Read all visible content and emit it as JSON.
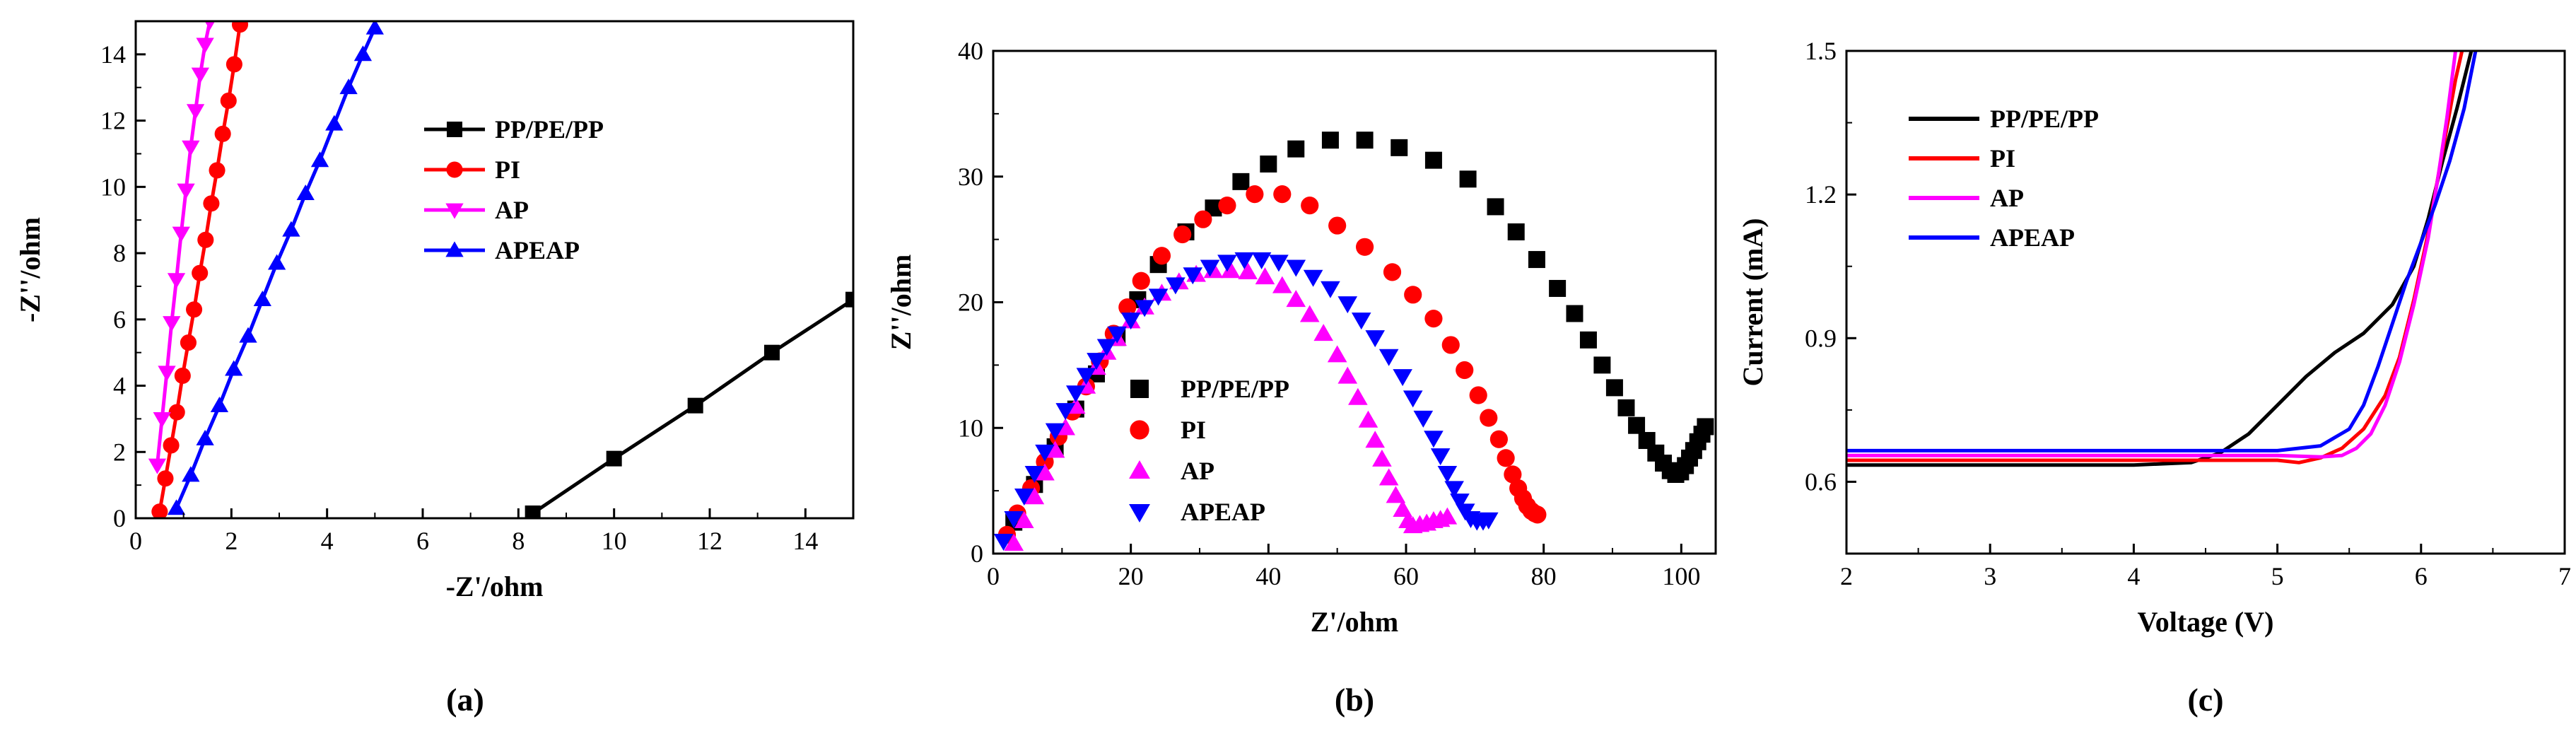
{
  "colors": {
    "PP/PE/PP": "#000000",
    "PI": "#ff0000",
    "AP": "#ff00ff",
    "APEAP": "#0000ff"
  },
  "chart_data": [
    {
      "panel": "(a)",
      "type": "scatter",
      "title": "",
      "xlabel": "-Z'/ohm",
      "ylabel": "-Z''/ohm",
      "xlim": [
        0,
        15
      ],
      "ylim": [
        0,
        15
      ],
      "xticks": [
        "0",
        "2",
        "4",
        "6",
        "8",
        "10",
        "12",
        "14"
      ],
      "yticks": [
        "0",
        "2",
        "4",
        "6",
        "8",
        "10",
        "12",
        "14"
      ],
      "legend": [
        "PP/PE/PP",
        "PI",
        "AP",
        "APEAP"
      ],
      "legend_position": "center-right",
      "series": [
        {
          "name": "PP/PE/PP",
          "marker": "square",
          "line": true,
          "x": [
            8.3,
            10.0,
            11.7,
            13.3,
            15.0
          ],
          "y": [
            0.15,
            1.8,
            3.4,
            5.0,
            6.6
          ]
        },
        {
          "name": "PI",
          "marker": "circle",
          "line": true,
          "x": [
            0.5,
            0.62,
            0.74,
            0.86,
            0.98,
            1.1,
            1.22,
            1.34,
            1.46,
            1.58,
            1.7,
            1.82,
            1.94,
            2.06,
            2.18
          ],
          "y": [
            0.2,
            1.2,
            2.2,
            3.2,
            4.3,
            5.3,
            6.3,
            7.4,
            8.4,
            9.5,
            10.5,
            11.6,
            12.6,
            13.7,
            14.9
          ]
        },
        {
          "name": "AP",
          "marker": "triangle-down",
          "line": true,
          "x": [
            0.45,
            0.55,
            0.65,
            0.75,
            0.85,
            0.95,
            1.05,
            1.15,
            1.25,
            1.35,
            1.45,
            1.55
          ],
          "y": [
            1.6,
            3.0,
            4.4,
            5.9,
            7.2,
            8.6,
            9.9,
            11.2,
            12.3,
            13.4,
            14.3,
            15.0
          ]
        },
        {
          "name": "APEAP",
          "marker": "triangle-up",
          "line": true,
          "x": [
            0.85,
            1.15,
            1.45,
            1.75,
            2.05,
            2.35,
            2.65,
            2.95,
            3.25,
            3.55,
            3.85,
            4.15,
            4.45,
            4.75,
            5.0
          ],
          "y": [
            0.3,
            1.3,
            2.4,
            3.4,
            4.5,
            5.5,
            6.6,
            7.7,
            8.7,
            9.8,
            10.8,
            11.9,
            13.0,
            14.0,
            14.8
          ]
        }
      ]
    },
    {
      "panel": "(b)",
      "type": "scatter",
      "title": "",
      "xlabel": "Z'/ohm",
      "ylabel": "Z''/ohm",
      "xlim": [
        0,
        105
      ],
      "ylim": [
        0,
        40
      ],
      "xticks": [
        "0",
        "20",
        "40",
        "60",
        "80",
        "100"
      ],
      "yticks": [
        "0",
        "10",
        "20",
        "30",
        "40"
      ],
      "legend": [
        "PP/PE/PP",
        "PI",
        "AP",
        "APEAP"
      ],
      "legend_position": "lower-left",
      "series": [
        {
          "name": "PP/PE/PP",
          "marker": "square",
          "line": false,
          "x": [
            3,
            6,
            9,
            12,
            15,
            18,
            21,
            24,
            28,
            32,
            36,
            40,
            44,
            49,
            54,
            59,
            64,
            69,
            73,
            76,
            79,
            82,
            84.5,
            86.5,
            88.5,
            90.3,
            92,
            93.5,
            95,
            96.3,
            97.4,
            98.4,
            99.2,
            99.9,
            100.6,
            101.2,
            101.8,
            102.4,
            103.0,
            103.5
          ],
          "y": [
            2.5,
            5.5,
            8.5,
            11.5,
            14.3,
            17.2,
            20.2,
            23.0,
            25.6,
            27.5,
            29.6,
            31.0,
            32.2,
            32.9,
            32.9,
            32.3,
            31.3,
            29.8,
            27.6,
            25.6,
            23.4,
            21.1,
            19.1,
            17.0,
            15.0,
            13.2,
            11.6,
            10.2,
            9.0,
            8.0,
            7.2,
            6.6,
            6.3,
            6.5,
            7.0,
            7.6,
            8.2,
            8.9,
            9.5,
            10.1
          ]
        },
        {
          "name": "PI",
          "marker": "circle",
          "line": false,
          "x": [
            2,
            3.5,
            5.5,
            7.5,
            9.5,
            11.5,
            13.5,
            15.5,
            17.5,
            19.5,
            21.5,
            24.5,
            27.5,
            30.5,
            34,
            38,
            42,
            46,
            50,
            54,
            58,
            61,
            64,
            66.5,
            68.5,
            70.5,
            72,
            73.5,
            74.5,
            75.5,
            76.3,
            77,
            77.6,
            78.2,
            78.7,
            79.1
          ],
          "y": [
            1.5,
            3.2,
            5.2,
            7.3,
            9.3,
            11.3,
            13.3,
            15.3,
            17.5,
            19.6,
            21.7,
            23.7,
            25.4,
            26.6,
            27.7,
            28.6,
            28.6,
            27.7,
            26.1,
            24.4,
            22.4,
            20.6,
            18.7,
            16.6,
            14.6,
            12.6,
            10.8,
            9.1,
            7.6,
            6.3,
            5.2,
            4.4,
            3.8,
            3.4,
            3.2,
            3.1
          ]
        },
        {
          "name": "AP",
          "marker": "triangle-up",
          "line": false,
          "x": [
            3,
            4.5,
            6,
            7.5,
            9,
            10.5,
            12,
            13.5,
            15,
            16.5,
            18,
            20,
            22,
            24.5,
            27,
            29.5,
            32,
            34.5,
            37,
            39.5,
            42,
            44,
            46,
            48,
            50,
            51.5,
            53,
            54.5,
            55.5,
            56.5,
            57.5,
            58.5,
            59.5,
            60.3,
            61,
            62,
            63,
            64,
            65,
            66
          ],
          "y": [
            0.8,
            2.6,
            4.5,
            6.4,
            8.2,
            10.0,
            11.7,
            13.3,
            14.8,
            16.0,
            17.1,
            18.5,
            19.6,
            20.7,
            21.6,
            22.2,
            22.5,
            22.5,
            22.4,
            22.0,
            21.3,
            20.2,
            19.0,
            17.5,
            15.8,
            14.1,
            12.4,
            10.6,
            9.0,
            7.5,
            6.0,
            4.6,
            3.5,
            2.6,
            2.2,
            2.3,
            2.4,
            2.6,
            2.7,
            2.9
          ]
        },
        {
          "name": "APEAP",
          "marker": "triangle-down",
          "line": false,
          "x": [
            1.5,
            3,
            4.5,
            6,
            7.5,
            9,
            10.5,
            12,
            13.5,
            15,
            16.5,
            18,
            20,
            22,
            24,
            26.5,
            29,
            31.5,
            34,
            36.5,
            39,
            41.5,
            44,
            46.5,
            49,
            51.5,
            53.5,
            55.5,
            57.5,
            59.5,
            61,
            62.5,
            64,
            65,
            66,
            67,
            67.8,
            68.6,
            69.4,
            70.3,
            71.2,
            72
          ],
          "y": [
            1.0,
            2.8,
            4.6,
            6.4,
            8.1,
            9.8,
            11.4,
            12.8,
            14.2,
            15.4,
            16.5,
            17.5,
            18.6,
            19.6,
            20.5,
            21.4,
            22.2,
            22.8,
            23.2,
            23.4,
            23.4,
            23.2,
            22.8,
            22.0,
            21.1,
            19.9,
            18.6,
            17.2,
            15.7,
            14.1,
            12.4,
            10.8,
            9.2,
            7.8,
            6.4,
            5.2,
            4.2,
            3.4,
            2.8,
            2.6,
            2.6,
            2.7
          ]
        }
      ]
    },
    {
      "panel": "(c)",
      "type": "line",
      "title": "",
      "xlabel": "Voltage (V)",
      "ylabel": "Current (mA)",
      "xlim": [
        2,
        7
      ],
      "ylim": [
        0.45,
        1.5
      ],
      "xticks": [
        "2",
        "3",
        "4",
        "5",
        "6",
        "7"
      ],
      "yticks": [
        "0.6",
        "0.9",
        "1.2",
        "1.5"
      ],
      "ytick_values": [
        0.6,
        0.9,
        1.2,
        1.5
      ],
      "legend": [
        "PP/PE/PP",
        "PI",
        "AP",
        "APEAP"
      ],
      "legend_position": "top-left",
      "series": [
        {
          "name": "PP/PE/PP",
          "x": [
            2,
            3,
            4,
            4.4,
            4.6,
            4.8,
            5.0,
            5.2,
            5.4,
            5.6,
            5.8,
            5.95,
            6.05,
            6.15,
            6.25,
            6.35
          ],
          "y": [
            0.635,
            0.635,
            0.635,
            0.64,
            0.66,
            0.7,
            0.76,
            0.82,
            0.87,
            0.91,
            0.97,
            1.05,
            1.15,
            1.27,
            1.38,
            1.5
          ]
        },
        {
          "name": "PI",
          "x": [
            2,
            3,
            4,
            5,
            5.15,
            5.3,
            5.45,
            5.6,
            5.75,
            5.85,
            5.95,
            6.05,
            6.12,
            6.18,
            6.24,
            6.3
          ],
          "y": [
            0.645,
            0.645,
            0.645,
            0.645,
            0.64,
            0.65,
            0.67,
            0.71,
            0.78,
            0.86,
            0.98,
            1.12,
            1.24,
            1.34,
            1.44,
            1.52
          ]
        },
        {
          "name": "AP",
          "x": [
            2,
            3,
            4,
            5,
            5.3,
            5.45,
            5.55,
            5.65,
            5.75,
            5.85,
            5.95,
            6.05,
            6.12,
            6.18,
            6.24
          ],
          "y": [
            0.655,
            0.655,
            0.655,
            0.655,
            0.652,
            0.655,
            0.67,
            0.7,
            0.76,
            0.85,
            0.97,
            1.11,
            1.24,
            1.36,
            1.5
          ]
        },
        {
          "name": "APEAP",
          "x": [
            2,
            3,
            4,
            5,
            5.3,
            5.5,
            5.6,
            5.7,
            5.8,
            5.9,
            6.0,
            6.1,
            6.2,
            6.3,
            6.38
          ],
          "y": [
            0.665,
            0.665,
            0.665,
            0.665,
            0.675,
            0.71,
            0.76,
            0.84,
            0.93,
            1.02,
            1.1,
            1.18,
            1.27,
            1.38,
            1.5
          ]
        }
      ]
    }
  ]
}
